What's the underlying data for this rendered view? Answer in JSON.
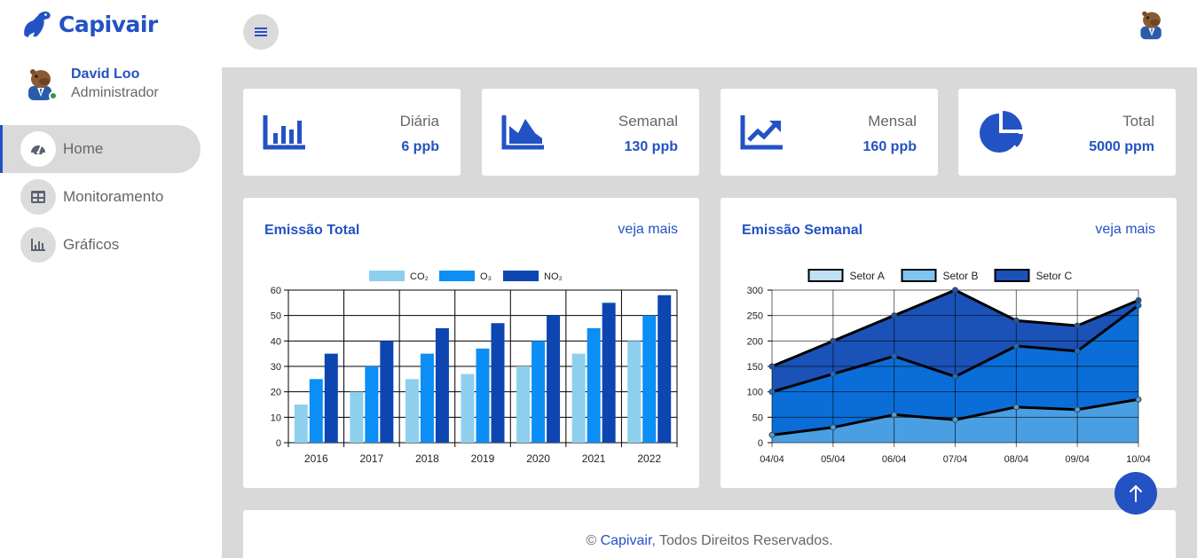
{
  "brand": {
    "name": "Capivair",
    "color": "#2352c4"
  },
  "user": {
    "name": "David Loo",
    "role": "Administrador",
    "status_color": "#1e9e4e"
  },
  "nav": {
    "items": [
      {
        "label": "Home",
        "icon": "gauge-icon",
        "active": true
      },
      {
        "label": "Monitoramento",
        "icon": "table-icon",
        "active": false
      },
      {
        "label": "Gráficos",
        "icon": "bar-chart-icon",
        "active": false
      }
    ]
  },
  "topbar": {
    "menu_icon": "hamburger-icon"
  },
  "stats": [
    {
      "label": "Diária",
      "value": "6 ppb",
      "icon": "bar-chart-icon"
    },
    {
      "label": "Semanal",
      "value": "130 ppb",
      "icon": "area-chart-icon"
    },
    {
      "label": "Mensal",
      "value": "160 ppb",
      "icon": "trend-up-icon"
    },
    {
      "label": "Total",
      "value": "5000 ppm",
      "icon": "pie-chart-icon"
    }
  ],
  "panels": {
    "total": {
      "title": "Emissão Total",
      "link": "veja mais"
    },
    "weekly": {
      "title": "Emissão Semanal",
      "link": "veja mais"
    }
  },
  "footer": {
    "prefix": "© ",
    "brand": "Capivair",
    "suffix": ", Todos Direitos Reservados."
  },
  "colors": {
    "main_bg": "#d9d9d9",
    "accent": "#2352c4"
  },
  "chart_data": [
    {
      "type": "bar",
      "categories": [
        "2016",
        "2017",
        "2018",
        "2019",
        "2020",
        "2021",
        "2022"
      ],
      "series": [
        {
          "name": "CO₂",
          "color": "#8ecfee",
          "values": [
            15,
            20,
            25,
            27,
            30,
            35,
            40
          ]
        },
        {
          "name": "O₃",
          "color": "#0b8ef5",
          "values": [
            25,
            30,
            35,
            37,
            40,
            45,
            50
          ]
        },
        {
          "name": "NO₂",
          "color": "#0d46b0",
          "values": [
            35,
            40,
            45,
            47,
            50,
            55,
            58
          ]
        }
      ],
      "ylim": [
        0,
        60
      ],
      "yticks": [
        0,
        10,
        20,
        30,
        40,
        50,
        60
      ],
      "grid": true,
      "legend": "top"
    },
    {
      "type": "area",
      "categories": [
        "04/04",
        "05/04",
        "06/04",
        "07/04",
        "08/04",
        "09/04",
        "10/04"
      ],
      "series": [
        {
          "name": "Setor A",
          "color": "#4a9fe3",
          "legend_color": "#bfe0f5",
          "values": [
            15,
            30,
            55,
            45,
            70,
            65,
            85
          ]
        },
        {
          "name": "Setor B",
          "color": "#0b6ed8",
          "legend_color": "#7ec4f1",
          "values": [
            100,
            135,
            170,
            130,
            190,
            180,
            270
          ]
        },
        {
          "name": "Setor C",
          "color": "#1a52b8",
          "legend_color": "#1a52b8",
          "values": [
            150,
            200,
            250,
            300,
            240,
            230,
            280
          ]
        }
      ],
      "ylim": [
        0,
        300
      ],
      "yticks": [
        0,
        50,
        100,
        150,
        200,
        250,
        300
      ],
      "grid": true,
      "legend": "top"
    }
  ]
}
